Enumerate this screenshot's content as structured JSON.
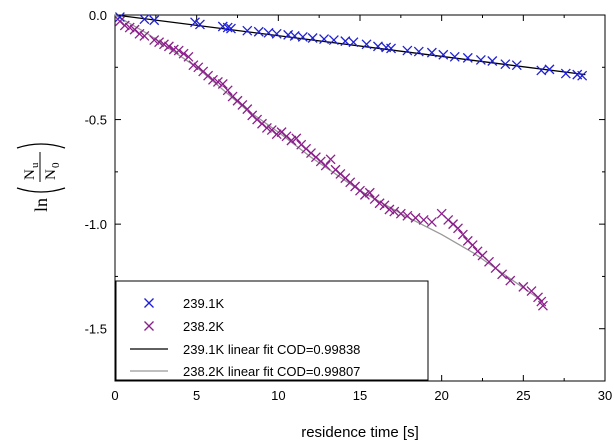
{
  "chart_data": {
    "type": "scatter",
    "xlabel": "residence time [s]",
    "ylabel": {
      "prefix": "ln",
      "numerator": "N",
      "numerator_sub": "u",
      "denominator": "N",
      "denominator_sub": "0"
    },
    "xlim": [
      0,
      30
    ],
    "ylim": [
      -1.75,
      0
    ],
    "x_ticks": [
      0,
      5,
      10,
      15,
      20,
      25,
      30
    ],
    "x_tick_labels": [
      "0",
      "5",
      "10",
      "15",
      "20",
      "25",
      "30"
    ],
    "y_ticks": [
      0,
      -0.5,
      -1.0,
      -1.5
    ],
    "y_tick_labels": [
      "0.0",
      "-0.5",
      "-1.0",
      "-1.5"
    ],
    "legend_position": "bottom-left",
    "series": [
      {
        "name": "239.1K",
        "marker": "x",
        "color": "#1f1fd6",
        "x": [
          0.3,
          1.8,
          2.4,
          4.9,
          5.2,
          6.6,
          6.9,
          7.1,
          8.1,
          8.8,
          9.4,
          9.9,
          10.6,
          11.0,
          11.5,
          12.1,
          12.8,
          13.4,
          14.1,
          14.6,
          15.4,
          16.1,
          16.6,
          16.9,
          17.9,
          18.6,
          19.4,
          20.1,
          20.8,
          21.6,
          22.4,
          23.1,
          23.9,
          24.6,
          26.1,
          26.6,
          27.6,
          28.3,
          28.6
        ],
        "y": [
          -0.01,
          -0.02,
          -0.025,
          -0.035,
          -0.045,
          -0.055,
          -0.06,
          -0.065,
          -0.075,
          -0.08,
          -0.085,
          -0.09,
          -0.095,
          -0.1,
          -0.105,
          -0.11,
          -0.115,
          -0.12,
          -0.125,
          -0.13,
          -0.14,
          -0.15,
          -0.155,
          -0.16,
          -0.17,
          -0.175,
          -0.18,
          -0.19,
          -0.2,
          -0.205,
          -0.215,
          -0.22,
          -0.235,
          -0.24,
          -0.265,
          -0.26,
          -0.28,
          -0.285,
          -0.29
        ]
      },
      {
        "name": "238.2K",
        "marker": "x",
        "color": "#8b1f8b",
        "x": [
          0.3,
          0.6,
          0.9,
          1.2,
          1.5,
          1.8,
          2.4,
          2.7,
          3.0,
          3.3,
          3.6,
          3.9,
          4.2,
          4.5,
          4.8,
          5.1,
          5.4,
          5.7,
          6.0,
          6.3,
          6.6,
          6.9,
          7.2,
          7.5,
          7.8,
          8.1,
          8.4,
          8.7,
          9.0,
          9.3,
          9.6,
          9.9,
          10.2,
          10.5,
          10.8,
          11.1,
          11.4,
          11.7,
          12.0,
          12.3,
          12.6,
          12.9,
          13.2,
          13.5,
          13.8,
          14.1,
          14.4,
          14.7,
          15.0,
          15.3,
          15.6,
          15.9,
          16.2,
          16.5,
          16.8,
          17.1,
          17.5,
          17.9,
          18.4,
          18.9,
          19.4,
          20.0,
          20.4,
          20.7,
          21.0,
          21.3,
          21.6,
          21.9,
          22.2,
          22.5,
          22.9,
          23.3,
          23.7,
          24.2,
          25.0,
          25.5,
          25.9,
          26.1,
          26.2
        ],
        "y": [
          -0.03,
          -0.05,
          -0.06,
          -0.07,
          -0.09,
          -0.1,
          -0.12,
          -0.13,
          -0.14,
          -0.15,
          -0.165,
          -0.17,
          -0.185,
          -0.2,
          -0.24,
          -0.25,
          -0.27,
          -0.29,
          -0.31,
          -0.32,
          -0.33,
          -0.36,
          -0.39,
          -0.41,
          -0.43,
          -0.45,
          -0.48,
          -0.5,
          -0.52,
          -0.54,
          -0.55,
          -0.57,
          -0.56,
          -0.58,
          -0.6,
          -0.59,
          -0.62,
          -0.64,
          -0.66,
          -0.68,
          -0.7,
          -0.72,
          -0.69,
          -0.74,
          -0.76,
          -0.78,
          -0.8,
          -0.82,
          -0.84,
          -0.86,
          -0.85,
          -0.88,
          -0.9,
          -0.91,
          -0.93,
          -0.94,
          -0.95,
          -0.96,
          -0.97,
          -0.98,
          -0.99,
          -0.95,
          -0.98,
          -1.0,
          -1.02,
          -1.05,
          -1.08,
          -1.1,
          -1.13,
          -1.15,
          -1.18,
          -1.21,
          -1.24,
          -1.27,
          -1.3,
          -1.32,
          -1.35,
          -1.37,
          -1.39
        ]
      }
    ],
    "fits": [
      {
        "name": "239.1K linear fit COD=0.99838",
        "color": "#000000",
        "x": [
          0,
          28.8
        ],
        "y": [
          0,
          -0.285
        ]
      },
      {
        "name": "238.2K linear fit COD=0.99807",
        "color": "#999999",
        "x": [
          0,
          2,
          5,
          8,
          10,
          12,
          15,
          18,
          20,
          22,
          24,
          26.2
        ],
        "y": [
          0,
          -0.09,
          -0.25,
          -0.45,
          -0.56,
          -0.68,
          -0.84,
          -0.97,
          -1.05,
          -1.14,
          -1.25,
          -1.37
        ]
      }
    ]
  }
}
